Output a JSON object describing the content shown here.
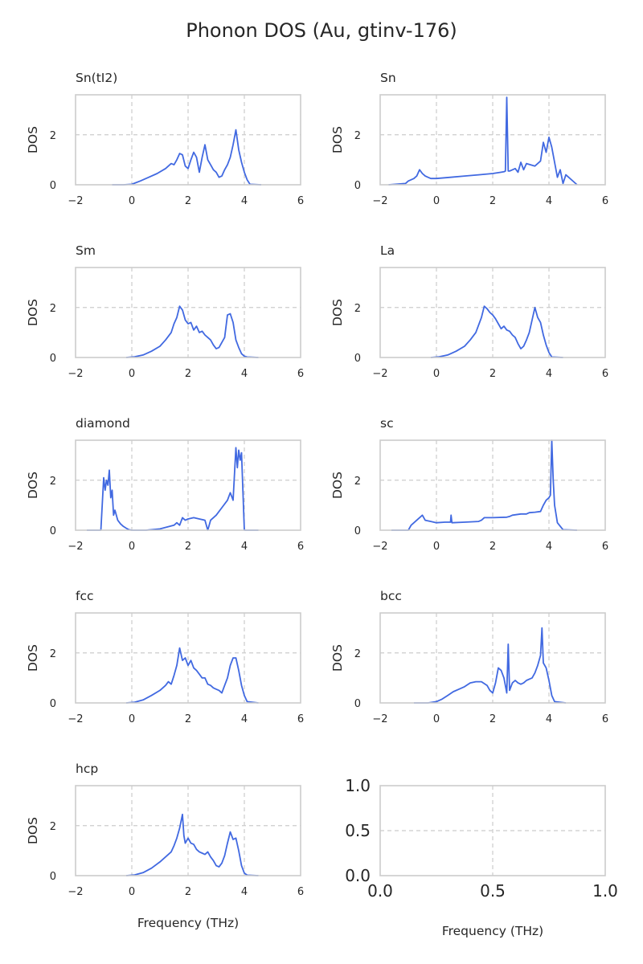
{
  "figure_title": "Phonon DOS (Au, gtinv-176)",
  "colors": {
    "line": "#4169e1",
    "grid": "#cccccc",
    "frame": "#cccccc",
    "text": "#262626"
  },
  "chart_data": [
    {
      "type": "line",
      "title": "Sn(tI2)",
      "xlabel": "",
      "ylabel": "DOS",
      "xlim": [
        -2,
        6
      ],
      "ylim": [
        0,
        3.6
      ],
      "xticks": [
        -2,
        0,
        2,
        4,
        6
      ],
      "yticks": [
        0,
        2
      ],
      "grid": "dashed",
      "x": [
        -0.7,
        -0.3,
        0,
        0.3,
        0.6,
        0.9,
        1.2,
        1.4,
        1.5,
        1.6,
        1.7,
        1.8,
        1.9,
        2.0,
        2.1,
        2.2,
        2.3,
        2.4,
        2.5,
        2.6,
        2.7,
        2.8,
        2.9,
        3.0,
        3.1,
        3.2,
        3.3,
        3.4,
        3.5,
        3.6,
        3.7,
        3.8,
        3.9,
        4.0,
        4.1,
        4.2,
        4.6
      ],
      "y": [
        0,
        0,
        0.02,
        0.15,
        0.3,
        0.45,
        0.65,
        0.85,
        0.8,
        1.0,
        1.25,
        1.2,
        0.75,
        0.65,
        1.0,
        1.3,
        1.1,
        0.5,
        1.1,
        1.6,
        1.0,
        0.8,
        0.6,
        0.5,
        0.3,
        0.35,
        0.6,
        0.8,
        1.1,
        1.6,
        2.2,
        1.4,
        0.9,
        0.5,
        0.2,
        0.02,
        0
      ],
      "series": []
    },
    {
      "type": "line",
      "title": "Sn",
      "xlabel": "",
      "ylabel": "DOS",
      "xlim": [
        -2,
        6
      ],
      "ylim": [
        0,
        3.6
      ],
      "xticks": [
        -2,
        0,
        2,
        4,
        6
      ],
      "yticks": [
        0,
        2
      ],
      "grid": "dashed",
      "x": [
        -1.7,
        -1.1,
        -1.0,
        -0.8,
        -0.7,
        -0.6,
        -0.5,
        -0.4,
        -0.3,
        -0.2,
        0.0,
        0.5,
        1.0,
        1.5,
        2.0,
        2.3,
        2.4,
        2.45,
        2.5,
        2.55,
        2.6,
        2.8,
        2.9,
        3.0,
        3.1,
        3.2,
        3.5,
        3.7,
        3.8,
        3.9,
        4.0,
        4.1,
        4.2,
        4.3,
        4.4,
        4.5,
        4.6,
        5.0
      ],
      "y": [
        0,
        0.05,
        0.15,
        0.25,
        0.35,
        0.6,
        0.45,
        0.35,
        0.3,
        0.25,
        0.25,
        0.3,
        0.35,
        0.4,
        0.45,
        0.5,
        0.52,
        0.55,
        3.5,
        0.55,
        0.55,
        0.65,
        0.5,
        0.9,
        0.6,
        0.85,
        0.75,
        0.95,
        1.7,
        1.3,
        1.9,
        1.5,
        0.9,
        0.3,
        0.6,
        0.05,
        0.4,
        0
      ],
      "series": []
    },
    {
      "type": "line",
      "title": "Sm",
      "xlabel": "",
      "ylabel": "DOS",
      "xlim": [
        -2,
        6
      ],
      "ylim": [
        0,
        3.6
      ],
      "xticks": [
        -2,
        0,
        2,
        4,
        6
      ],
      "yticks": [
        0,
        2
      ],
      "grid": "dashed",
      "x": [
        -0.2,
        0.1,
        0.4,
        0.7,
        1.0,
        1.2,
        1.4,
        1.5,
        1.6,
        1.7,
        1.8,
        1.9,
        2.0,
        2.1,
        2.2,
        2.3,
        2.4,
        2.5,
        2.6,
        2.7,
        2.8,
        2.9,
        3.0,
        3.1,
        3.2,
        3.3,
        3.4,
        3.5,
        3.6,
        3.7,
        3.8,
        3.9,
        4.0,
        4.1,
        4.5
      ],
      "y": [
        0,
        0.03,
        0.1,
        0.25,
        0.45,
        0.7,
        1.0,
        1.35,
        1.6,
        2.05,
        1.9,
        1.5,
        1.35,
        1.4,
        1.1,
        1.25,
        1.0,
        1.05,
        0.9,
        0.8,
        0.7,
        0.5,
        0.35,
        0.4,
        0.6,
        0.8,
        1.7,
        1.75,
        1.4,
        0.7,
        0.4,
        0.15,
        0.05,
        0.02,
        0
      ],
      "series": []
    },
    {
      "type": "line",
      "title": "La",
      "xlabel": "",
      "ylabel": "DOS",
      "xlim": [
        -2,
        6
      ],
      "ylim": [
        0,
        3.6
      ],
      "xticks": [
        -2,
        0,
        2,
        4,
        6
      ],
      "yticks": [
        0,
        2
      ],
      "grid": "dashed",
      "x": [
        -0.2,
        0.1,
        0.4,
        0.7,
        1.0,
        1.2,
        1.4,
        1.5,
        1.6,
        1.7,
        1.8,
        1.9,
        2.0,
        2.1,
        2.2,
        2.3,
        2.4,
        2.5,
        2.6,
        2.7,
        2.8,
        2.9,
        3.0,
        3.1,
        3.2,
        3.3,
        3.4,
        3.5,
        3.6,
        3.7,
        3.8,
        3.9,
        4.0,
        4.1,
        4.5
      ],
      "y": [
        0,
        0.03,
        0.1,
        0.25,
        0.45,
        0.7,
        1.0,
        1.3,
        1.6,
        2.05,
        1.95,
        1.8,
        1.7,
        1.55,
        1.35,
        1.15,
        1.25,
        1.1,
        1.05,
        0.9,
        0.8,
        0.55,
        0.35,
        0.45,
        0.7,
        1.0,
        1.5,
        2.0,
        1.6,
        1.4,
        0.9,
        0.5,
        0.2,
        0.02,
        0
      ],
      "series": []
    },
    {
      "type": "line",
      "title": "diamond",
      "xlabel": "",
      "ylabel": "DOS",
      "xlim": [
        -2,
        6
      ],
      "ylim": [
        0,
        3.6
      ],
      "xticks": [
        -2,
        0,
        2,
        4,
        6
      ],
      "yticks": [
        0,
        2
      ],
      "grid": "dashed",
      "x": [
        -1.6,
        -1.1,
        -1.0,
        -0.95,
        -0.9,
        -0.85,
        -0.8,
        -0.75,
        -0.7,
        -0.65,
        -0.6,
        -0.5,
        -0.4,
        -0.3,
        -0.2,
        -0.1,
        0.0,
        0.5,
        1.0,
        1.5,
        1.6,
        1.7,
        1.8,
        1.9,
        2.0,
        2.2,
        2.4,
        2.6,
        2.7,
        2.8,
        3.0,
        3.2,
        3.4,
        3.5,
        3.6,
        3.7,
        3.75,
        3.8,
        3.85,
        3.9,
        3.95,
        4.0,
        4.5
      ],
      "y": [
        0,
        0,
        2.1,
        1.6,
        2.0,
        1.8,
        2.4,
        1.3,
        1.6,
        0.6,
        0.8,
        0.4,
        0.25,
        0.15,
        0.08,
        0.02,
        0,
        0,
        0.05,
        0.2,
        0.3,
        0.2,
        0.5,
        0.4,
        0.45,
        0.5,
        0.45,
        0.4,
        0,
        0.4,
        0.6,
        0.9,
        1.2,
        1.5,
        1.2,
        3.3,
        2.5,
        3.2,
        2.8,
        3.1,
        1.5,
        0,
        0
      ],
      "series": []
    },
    {
      "type": "line",
      "title": "sc",
      "xlabel": "",
      "ylabel": "DOS",
      "xlim": [
        -2,
        6
      ],
      "ylim": [
        0,
        3.6
      ],
      "xticks": [
        -2,
        0,
        2,
        4,
        6
      ],
      "yticks": [
        0,
        2
      ],
      "grid": "dashed",
      "x": [
        -1.6,
        -1.0,
        -0.9,
        -0.8,
        -0.6,
        -0.5,
        -0.4,
        -0.2,
        0.0,
        0.3,
        0.5,
        0.52,
        0.55,
        1.0,
        1.5,
        1.6,
        1.7,
        2.0,
        2.5,
        2.6,
        2.7,
        3.0,
        3.2,
        3.3,
        3.5,
        3.7,
        3.8,
        3.9,
        4.0,
        4.05,
        4.1,
        4.15,
        4.2,
        4.3,
        4.5,
        5.0
      ],
      "y": [
        0,
        0,
        0.2,
        0.3,
        0.5,
        0.6,
        0.4,
        0.35,
        0.3,
        0.32,
        0.32,
        0.6,
        0.3,
        0.32,
        0.35,
        0.4,
        0.5,
        0.5,
        0.52,
        0.55,
        0.6,
        0.65,
        0.65,
        0.7,
        0.72,
        0.75,
        1.0,
        1.2,
        1.3,
        1.4,
        3.6,
        2.0,
        1.0,
        0.3,
        0.02,
        0
      ],
      "series": []
    },
    {
      "type": "line",
      "title": "fcc",
      "xlabel": "",
      "ylabel": "DOS",
      "xlim": [
        -2,
        6
      ],
      "ylim": [
        0,
        3.6
      ],
      "xticks": [
        -2,
        0,
        2,
        4,
        6
      ],
      "yticks": [
        0,
        2
      ],
      "grid": "dashed",
      "x": [
        -0.2,
        0.1,
        0.4,
        0.7,
        1.0,
        1.2,
        1.3,
        1.4,
        1.5,
        1.6,
        1.7,
        1.8,
        1.9,
        2.0,
        2.1,
        2.2,
        2.3,
        2.4,
        2.5,
        2.6,
        2.7,
        2.8,
        2.9,
        3.0,
        3.1,
        3.2,
        3.3,
        3.4,
        3.5,
        3.6,
        3.7,
        3.8,
        3.9,
        4.0,
        4.1,
        4.5
      ],
      "y": [
        0,
        0.03,
        0.12,
        0.3,
        0.5,
        0.7,
        0.85,
        0.75,
        1.1,
        1.5,
        2.2,
        1.7,
        1.8,
        1.5,
        1.7,
        1.4,
        1.3,
        1.15,
        1.0,
        1.0,
        0.75,
        0.7,
        0.6,
        0.55,
        0.5,
        0.4,
        0.7,
        1.0,
        1.5,
        1.8,
        1.8,
        1.3,
        0.7,
        0.3,
        0.05,
        0
      ],
      "series": []
    },
    {
      "type": "line",
      "title": "bcc",
      "xlabel": "",
      "ylabel": "DOS",
      "xlim": [
        -2,
        6
      ],
      "ylim": [
        0,
        3.6
      ],
      "xticks": [
        -2,
        0,
        2,
        4,
        6
      ],
      "yticks": [
        0,
        2
      ],
      "grid": "dashed",
      "x": [
        -0.8,
        -0.3,
        0.0,
        0.2,
        0.4,
        0.6,
        0.8,
        1.0,
        1.2,
        1.4,
        1.6,
        1.8,
        1.9,
        2.0,
        2.1,
        2.2,
        2.3,
        2.4,
        2.5,
        2.55,
        2.6,
        2.7,
        2.8,
        2.9,
        3.0,
        3.1,
        3.2,
        3.3,
        3.4,
        3.5,
        3.6,
        3.7,
        3.75,
        3.8,
        3.9,
        4.0,
        4.1,
        4.2,
        4.6
      ],
      "y": [
        0,
        0,
        0.05,
        0.15,
        0.3,
        0.45,
        0.55,
        0.65,
        0.8,
        0.85,
        0.85,
        0.7,
        0.5,
        0.4,
        0.8,
        1.4,
        1.3,
        1.0,
        0.4,
        2.35,
        0.5,
        0.8,
        0.9,
        0.8,
        0.75,
        0.8,
        0.9,
        0.95,
        1.0,
        1.2,
        1.5,
        1.9,
        3.0,
        1.6,
        1.4,
        0.9,
        0.3,
        0.05,
        0
      ],
      "series": []
    },
    {
      "type": "line",
      "title": "hcp",
      "xlabel": "Frequency (THz)",
      "ylabel": "DOS",
      "xlim": [
        -2,
        6
      ],
      "ylim": [
        0,
        3.6
      ],
      "xticks": [
        -2,
        0,
        2,
        4,
        6
      ],
      "yticks": [
        0,
        2
      ],
      "grid": "dashed",
      "x": [
        -0.2,
        0.1,
        0.4,
        0.7,
        1.0,
        1.2,
        1.4,
        1.5,
        1.6,
        1.7,
        1.8,
        1.85,
        1.9,
        2.0,
        2.1,
        2.2,
        2.3,
        2.4,
        2.5,
        2.6,
        2.7,
        2.8,
        2.9,
        3.0,
        3.1,
        3.2,
        3.3,
        3.4,
        3.5,
        3.6,
        3.7,
        3.8,
        3.9,
        4.0,
        4.1,
        4.5
      ],
      "y": [
        0,
        0.03,
        0.12,
        0.3,
        0.55,
        0.75,
        0.95,
        1.2,
        1.5,
        1.9,
        2.45,
        1.6,
        1.3,
        1.5,
        1.3,
        1.25,
        1.05,
        0.95,
        0.9,
        0.85,
        0.95,
        0.75,
        0.6,
        0.4,
        0.35,
        0.5,
        0.8,
        1.3,
        1.75,
        1.45,
        1.5,
        1.0,
        0.4,
        0.1,
        0.02,
        0
      ],
      "series": []
    },
    {
      "type": "line",
      "title": "",
      "xlabel": "Frequency (THz)",
      "ylabel": "",
      "xlim": [
        0,
        1
      ],
      "ylim": [
        0,
        1
      ],
      "xticks": [
        0.0,
        0.5,
        1.0
      ],
      "yticks": [
        0.0,
        0.5,
        1.0
      ],
      "grid": "dashed",
      "tick_labels_x": [
        "0.0",
        "0.5",
        "1.0"
      ],
      "tick_labels_y": [
        "0.0",
        "0.5",
        "1.0"
      ],
      "x": [],
      "y": [],
      "series": []
    }
  ]
}
